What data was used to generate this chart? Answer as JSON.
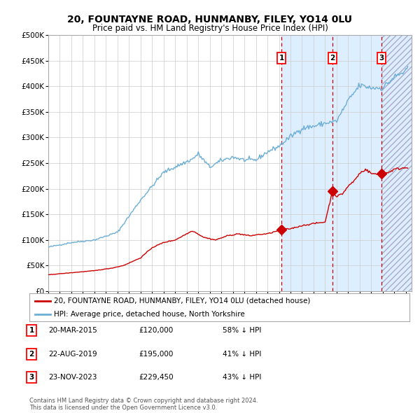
{
  "title": "20, FOUNTAYNE ROAD, HUNMANBY, FILEY, YO14 0LU",
  "subtitle": "Price paid vs. HM Land Registry's House Price Index (HPI)",
  "xlim_start": 1995.0,
  "xlim_end": 2026.5,
  "ylim_min": 0,
  "ylim_max": 500000,
  "yticks": [
    0,
    50000,
    100000,
    150000,
    200000,
    250000,
    300000,
    350000,
    400000,
    450000,
    500000
  ],
  "ytick_labels": [
    "£0",
    "£50K",
    "£100K",
    "£150K",
    "£200K",
    "£250K",
    "£300K",
    "£350K",
    "£400K",
    "£450K",
    "£500K"
  ],
  "sale_dates": [
    2015.22,
    2019.64,
    2023.9
  ],
  "sale_prices": [
    120000,
    195000,
    229450
  ],
  "sale_labels": [
    "1",
    "2",
    "3"
  ],
  "hpi_color": "#6baed6",
  "price_color": "#cc0000",
  "shading_color": "#ddeeff",
  "hatch_color": "#bbccdd",
  "vertical_line_color": "#cc0000",
  "legend_label_price": "20, FOUNTAYNE ROAD, HUNMANBY, FILEY, YO14 0LU (detached house)",
  "legend_label_hpi": "HPI: Average price, detached house, North Yorkshire",
  "table_rows": [
    {
      "label": "1",
      "date": "20-MAR-2015",
      "price": "£120,000",
      "pct": "58% ↓ HPI"
    },
    {
      "label": "2",
      "date": "22-AUG-2019",
      "price": "£195,000",
      "pct": "41% ↓ HPI"
    },
    {
      "label": "3",
      "date": "23-NOV-2023",
      "price": "£229,450",
      "pct": "43% ↓ HPI"
    }
  ],
  "footnote": "Contains HM Land Registry data © Crown copyright and database right 2024.\nThis data is licensed under the Open Government Licence v3.0.",
  "background_color": "#ffffff",
  "grid_color": "#cccccc",
  "hpi_anchors": {
    "1995.0": 86000,
    "1997.0": 95000,
    "1999.0": 100000,
    "2001.0": 115000,
    "2003.0": 178000,
    "2005.0": 232000,
    "2007.5": 258000,
    "2008.0": 268000,
    "2009.0": 242000,
    "2010.0": 255000,
    "2011.0": 262000,
    "2012.0": 256000,
    "2013.0": 256000,
    "2014.0": 272000,
    "2015.0": 283000,
    "2016.0": 302000,
    "2017.0": 318000,
    "2018.0": 322000,
    "2019.0": 328000,
    "2020.0": 332000,
    "2021.0": 372000,
    "2022.0": 402000,
    "2023.0": 397000,
    "2024.0": 397000,
    "2025.0": 418000,
    "2026.2": 432000
  },
  "price_anchors": {
    "1995.0": 32000,
    "1997.0": 36000,
    "1999.0": 40000,
    "2000.5": 45000,
    "2001.5": 50000,
    "2003.0": 65000,
    "2004.0": 85000,
    "2005.0": 95000,
    "2006.0": 100000,
    "2007.5": 118000,
    "2008.5": 105000,
    "2009.5": 100000,
    "2010.5": 108000,
    "2011.5": 112000,
    "2012.5": 108000,
    "2013.0": 110000,
    "2014.0": 112000,
    "2015.22": 120000,
    "2016.0": 122000,
    "2017.0": 128000,
    "2018.0": 132000,
    "2019.0": 135000,
    "2019.64": 195000,
    "2020.0": 185000,
    "2020.5": 190000,
    "2021.0": 205000,
    "2021.5": 215000,
    "2022.0": 230000,
    "2022.5": 238000,
    "2023.0": 230000,
    "2023.5": 228000,
    "2023.9": 229450,
    "2024.5": 232000,
    "2025.0": 238000,
    "2026.2": 242000
  }
}
